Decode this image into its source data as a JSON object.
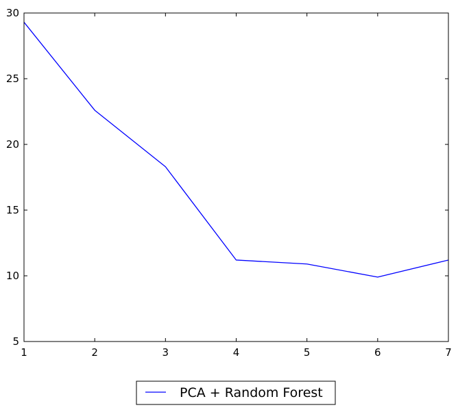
{
  "chart_data": {
    "type": "line",
    "title": "",
    "xlabel": "",
    "ylabel": "",
    "xlim": [
      1,
      7
    ],
    "ylim": [
      5,
      30
    ],
    "xticks": [
      1,
      2,
      3,
      4,
      5,
      6,
      7
    ],
    "yticks": [
      5,
      10,
      15,
      20,
      25,
      30
    ],
    "grid": false,
    "legend_position": "below",
    "series": [
      {
        "name": "PCA + Random Forest",
        "color": "#0000ff",
        "x": [
          1,
          2,
          3,
          4,
          5,
          6,
          7
        ],
        "y": [
          29.3,
          22.6,
          18.3,
          11.2,
          10.9,
          9.9,
          11.2
        ]
      }
    ]
  }
}
